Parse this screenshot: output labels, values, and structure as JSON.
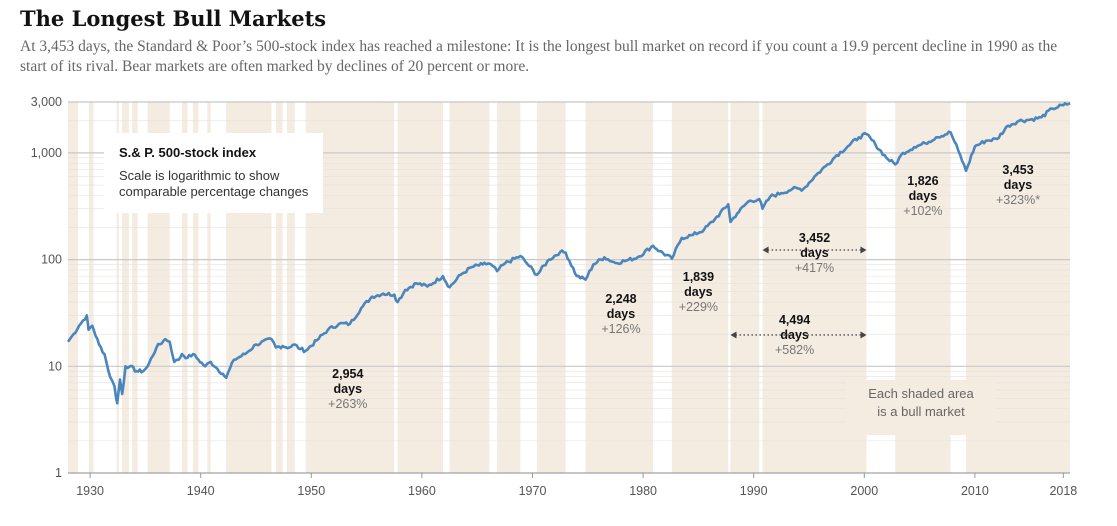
{
  "title": "The Longest Bull Markets",
  "subtitle": "At 3,453 days, the Standard & Poor’s 500-stock index has reached a milestone: It is the longest bull market on record if you count a 19.9 percent decline in 1990 as the start of its rival. Bear markets are often marked by declines of 20 percent or more.",
  "legend": {
    "title": "S.& P. 500-stock index",
    "note": "Scale is logarithmic to show comparable percentage changes"
  },
  "shade_note": {
    "line1": "Each shaded area",
    "line2": "is a bull market"
  },
  "colors": {
    "line": "#4a86bd",
    "shade": "#f4ebe1",
    "grid": "#d4d4d4"
  },
  "chart_data": {
    "type": "line",
    "title": "The Longest Bull Markets",
    "xlabel": "",
    "ylabel": "",
    "y_scale": "log",
    "xlim": [
      1928,
      2018.6
    ],
    "ylim": [
      1,
      3000
    ],
    "grid": true,
    "x_ticks": [
      1930,
      1940,
      1950,
      1960,
      1970,
      1980,
      1990,
      2000,
      2010,
      2018
    ],
    "x_tick_labels": [
      "1930",
      "1940",
      "1950",
      "1960",
      "1970",
      "1980",
      "1990",
      "2000",
      "2010",
      "2018"
    ],
    "y_ticks": [
      1,
      10,
      100,
      1000,
      3000
    ],
    "y_tick_labels": [
      "1",
      "10",
      "100",
      "1,000",
      "3,000"
    ],
    "bull_markets": [
      [
        1928.0,
        1928.9
      ],
      [
        1929.9,
        1930.3
      ],
      [
        1932.4,
        1932.6
      ],
      [
        1932.9,
        1933.5
      ],
      [
        1933.8,
        1934.3
      ],
      [
        1935.2,
        1937.2
      ],
      [
        1938.3,
        1938.8
      ],
      [
        1939.3,
        1939.8
      ],
      [
        1940.6,
        1940.9
      ],
      [
        1942.3,
        1946.4
      ],
      [
        1946.8,
        1947.4
      ],
      [
        1947.8,
        1948.5
      ],
      [
        1949.5,
        1957.5
      ],
      [
        1957.8,
        1961.9
      ],
      [
        1962.5,
        1966.1
      ],
      [
        1966.8,
        1968.9
      ],
      [
        1970.4,
        1973.0
      ],
      [
        1974.8,
        1980.9
      ],
      [
        1982.6,
        1987.7
      ],
      [
        1987.9,
        1990.5
      ],
      [
        1990.8,
        2000.2
      ],
      [
        2002.8,
        2007.8
      ],
      [
        2009.2,
        2018.6
      ]
    ],
    "series": [
      {
        "x": [
          1928.0,
          1928.5,
          1929.0,
          1929.7,
          1929.85,
          1930.2,
          1930.8,
          1931.3,
          1931.8,
          1932.2,
          1932.45,
          1932.7,
          1932.9,
          1933.2,
          1933.6,
          1934.2,
          1934.8,
          1935.2,
          1936.0,
          1936.8,
          1937.2,
          1937.6,
          1938.0,
          1938.3,
          1938.8,
          1939.3,
          1939.8,
          1940.4,
          1940.9,
          1941.5,
          1942.0,
          1942.3,
          1943.0,
          1944.0,
          1945.0,
          1946.4,
          1946.8,
          1947.4,
          1948.0,
          1948.5,
          1949.0,
          1949.5,
          1950.5,
          1951.5,
          1952.5,
          1953.5,
          1954.5,
          1955.5,
          1956.5,
          1957.5,
          1957.8,
          1958.5,
          1959.5,
          1960.5,
          1961.9,
          1962.5,
          1963.5,
          1964.5,
          1965.5,
          1966.1,
          1966.8,
          1967.5,
          1968.9,
          1969.5,
          1970.4,
          1971.5,
          1972.5,
          1973.0,
          1974.0,
          1974.8,
          1975.5,
          1976.5,
          1977.5,
          1978.5,
          1979.5,
          1980.9,
          1981.5,
          1982.6,
          1983.5,
          1984.5,
          1985.5,
          1986.5,
          1987.7,
          1987.9,
          1988.5,
          1989.5,
          1990.5,
          1990.8,
          1991.5,
          1992.5,
          1993.5,
          1994.5,
          1995.5,
          1996.5,
          1997.5,
          1998.5,
          1999.5,
          2000.2,
          2001.0,
          2002.0,
          2002.8,
          2003.5,
          2004.5,
          2005.5,
          2006.5,
          2007.8,
          2008.5,
          2009.2,
          2010.0,
          2011.0,
          2012.0,
          2013.0,
          2014.0,
          2015.0,
          2016.0,
          2017.0,
          2018.0,
          2018.6
        ],
        "values": [
          17,
          20,
          24,
          30,
          22,
          24,
          16,
          13,
          8,
          6.5,
          4.5,
          7.5,
          5.5,
          10,
          10,
          9,
          9,
          10,
          15,
          18,
          17,
          11,
          11.5,
          13,
          12,
          13,
          11.5,
          10,
          11,
          9.5,
          8.5,
          7.8,
          11.5,
          13,
          16,
          18,
          15,
          15.5,
          15,
          16,
          14.5,
          14,
          17.5,
          22,
          25,
          25,
          35,
          45,
          48,
          47,
          40,
          52,
          60,
          56,
          70,
          55,
          72,
          85,
          90,
          92,
          78,
          92,
          108,
          92,
          72,
          100,
          118,
          116,
          70,
          65,
          90,
          105,
          93,
          98,
          105,
          135,
          120,
          102,
          160,
          170,
          190,
          240,
          330,
          225,
          270,
          350,
          370,
          300,
          390,
          420,
          460,
          460,
          600,
          750,
          950,
          1150,
          1400,
          1500,
          1200,
          900,
          780,
          1000,
          1130,
          1230,
          1400,
          1560,
          1050,
          680,
          1150,
          1300,
          1350,
          1800,
          2000,
          2050,
          2150,
          2600,
          2800,
          2930
        ]
      }
    ],
    "annotations": [
      {
        "days": "2,954",
        "unit": "days",
        "change": "+263%"
      },
      {
        "days": "2,248",
        "unit": "days",
        "change": "+126%"
      },
      {
        "days": "1,839",
        "unit": "days",
        "change": "+229%"
      },
      {
        "days": "3,452",
        "unit": "days",
        "change": "+417%"
      },
      {
        "days": "4,494",
        "unit": "days",
        "change": "+582%"
      },
      {
        "days": "1,826",
        "unit": "days",
        "change": "+102%"
      },
      {
        "days": "3,453",
        "unit": "days",
        "change": "+323%*"
      }
    ]
  }
}
